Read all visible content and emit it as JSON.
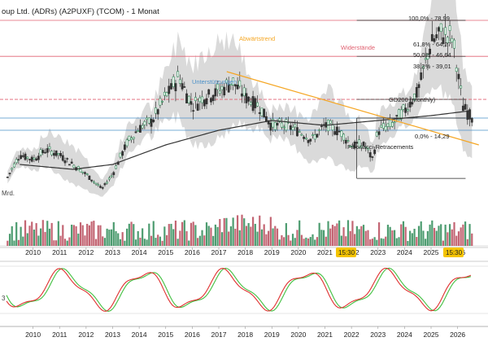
{
  "title": "oup Ltd. (ADRs) (A2PUXF) (TCOM) - 1 Monat",
  "axis_note": "Mrd.",
  "osc_axis_label": "3",
  "time_badges": [
    "15:30",
    "15:30"
  ],
  "labels": {
    "downtrend": "Abwärtstrend",
    "resistances": "Widerstände",
    "supports": "Unterstützungen",
    "gd200": "GD200 (monthly)",
    "fibonacci": "Fibonacci-Retracements"
  },
  "fib_labels": [
    "100,0% - 78,99",
    "61,8% - 64,27",
    "50,0% - 46,64",
    "38,2% - 39,01",
    "0,0% - 14,29"
  ],
  "colors": {
    "up": "#2e8b57",
    "down": "#b94a5a",
    "trend": "#f5a623",
    "resistance": "#e06070",
    "support": "#4a90c8",
    "gd200": "#333333",
    "band": "#d3d3d3",
    "osc_red": "#e03030",
    "osc_green": "#40c040",
    "badge": "#f5c400"
  },
  "chart_data": {
    "type": "candlestick",
    "x_ticks": [
      "2010",
      "2011",
      "2012",
      "2013",
      "2014",
      "2015",
      "2016",
      "2017",
      "2018",
      "2019",
      "2020",
      "2021",
      "2022",
      "2023",
      "2024",
      "2025",
      "2026"
    ],
    "x_ticks_oscillator": [
      "2010",
      "2011",
      "2012",
      "2013",
      "2014",
      "2015",
      "2016",
      "2017",
      "2018",
      "2019",
      "2020",
      "2021",
      "2022",
      "2023",
      "2024",
      "2025",
      "2026"
    ],
    "price_series": {
      "name": "TCOM monthly",
      "anchors": [
        [
          2009.0,
          14
        ],
        [
          2009.5,
          24
        ],
        [
          2010.0,
          22
        ],
        [
          2010.5,
          26
        ],
        [
          2011.0,
          24
        ],
        [
          2011.5,
          20
        ],
        [
          2012.0,
          16
        ],
        [
          2012.6,
          10
        ],
        [
          2013.0,
          16
        ],
        [
          2013.5,
          28
        ],
        [
          2014.0,
          35
        ],
        [
          2014.5,
          38
        ],
        [
          2015.0,
          48
        ],
        [
          2015.5,
          56
        ],
        [
          2016.0,
          44
        ],
        [
          2016.5,
          48
        ],
        [
          2017.0,
          50
        ],
        [
          2017.5,
          54
        ],
        [
          2018.0,
          48
        ],
        [
          2018.5,
          44
        ],
        [
          2019.0,
          36
        ],
        [
          2019.5,
          36
        ],
        [
          2020.0,
          34
        ],
        [
          2020.5,
          30
        ],
        [
          2021.0,
          36
        ],
        [
          2021.5,
          34
        ],
        [
          2022.0,
          28
        ],
        [
          2022.5,
          28
        ],
        [
          2022.8,
          22
        ],
        [
          2023.0,
          34
        ],
        [
          2023.5,
          36
        ],
        [
          2024.0,
          42
        ],
        [
          2024.5,
          50
        ],
        [
          2025.0,
          70
        ],
        [
          2025.4,
          74
        ],
        [
          2025.8,
          72
        ],
        [
          2026.2,
          44
        ],
        [
          2026.5,
          40
        ]
      ]
    },
    "gd200": [
      [
        2009.5,
        20
      ],
      [
        2011.5,
        18
      ],
      [
        2013.0,
        20
      ],
      [
        2015.0,
        28
      ],
      [
        2017.0,
        34
      ],
      [
        2019.0,
        38
      ],
      [
        2021.0,
        36
      ],
      [
        2023.0,
        38
      ],
      [
        2025.0,
        40
      ],
      [
        2026.5,
        42
      ]
    ],
    "fibonacci": [
      {
        "pct": "100,0%",
        "value": 78.99
      },
      {
        "pct": "61,8%",
        "value": 64.27
      },
      {
        "pct": "50,0%",
        "value": 46.64
      },
      {
        "pct": "38,2%",
        "value": 39.01
      },
      {
        "pct": "0,0%",
        "value": 14.29
      }
    ],
    "resistances": [
      78.99,
      64.27,
      46.64
    ],
    "supports": [
      39.01,
      34.0
    ],
    "downtrend_line": [
      [
        2017.3,
        58
      ],
      [
        2026.8,
        28
      ]
    ],
    "xlim": [
      2009.0,
      2026.9
    ]
  }
}
